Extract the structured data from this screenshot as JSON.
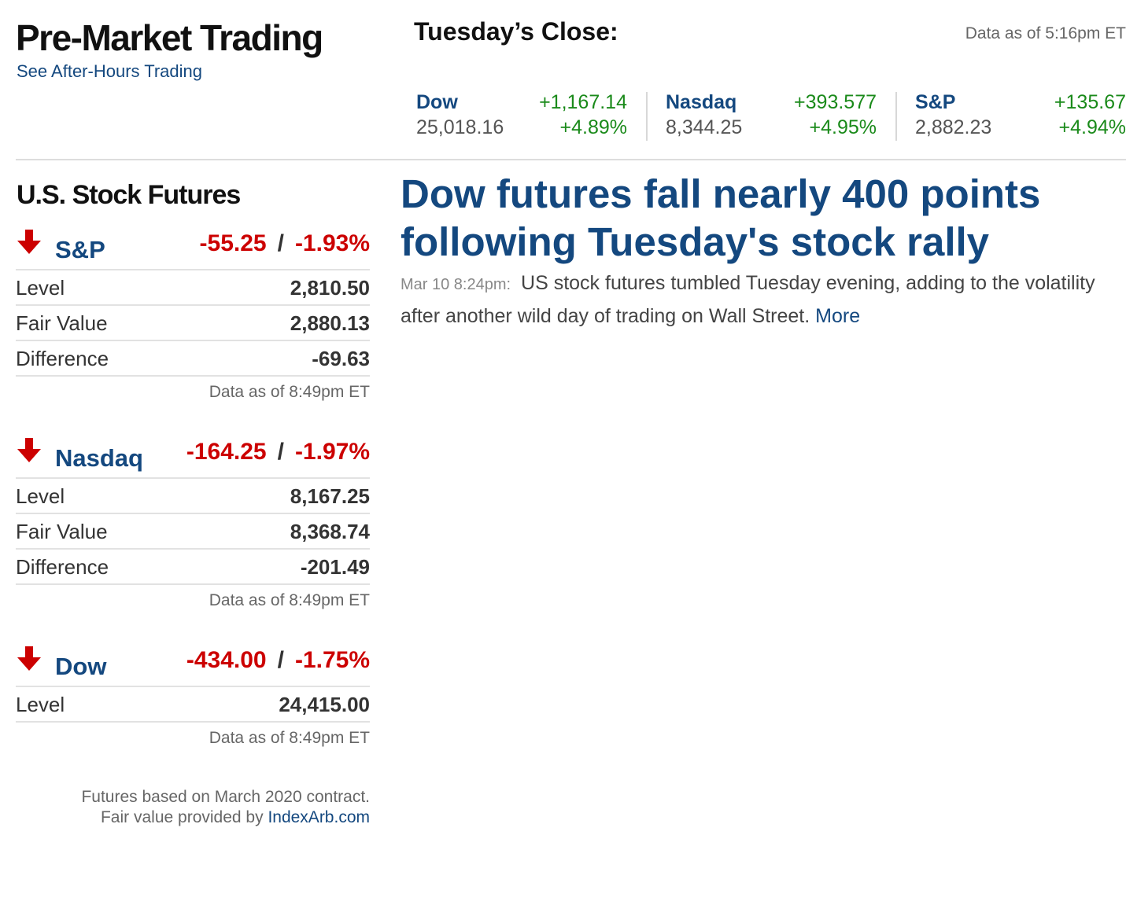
{
  "header": {
    "title": "Pre-Market Trading",
    "after_hours_link": "See After-Hours Trading"
  },
  "close": {
    "title": "Tuesday’s Close:",
    "as_of": "Data as of 5:16pm ET",
    "indices": [
      {
        "name": "Dow",
        "change": "+1,167.14",
        "level": "25,018.16",
        "pct": "+4.89%"
      },
      {
        "name": "Nasdaq",
        "change": "+393.577",
        "level": "8,344.25",
        "pct": "+4.95%"
      },
      {
        "name": "S&P",
        "change": "+135.67",
        "level": "2,882.23",
        "pct": "+4.94%"
      }
    ]
  },
  "futures": {
    "title": "U.S. Stock Futures",
    "blocks": [
      {
        "name": "S&P",
        "change": "-55.25",
        "sep": "/",
        "pct": "-1.93%",
        "rows": [
          {
            "label": "Level",
            "value": "2,810.50"
          },
          {
            "label": "Fair Value",
            "value": "2,880.13"
          },
          {
            "label": "Difference",
            "value": "-69.63"
          }
        ],
        "as_of": "Data as of 8:49pm ET"
      },
      {
        "name": "Nasdaq",
        "change": "-164.25",
        "sep": "/",
        "pct": "-1.97%",
        "rows": [
          {
            "label": "Level",
            "value": "8,167.25"
          },
          {
            "label": "Fair Value",
            "value": "8,368.74"
          },
          {
            "label": "Difference",
            "value": "-201.49"
          }
        ],
        "as_of": "Data as of 8:49pm ET"
      },
      {
        "name": "Dow",
        "change": "-434.00",
        "sep": "/",
        "pct": "-1.75%",
        "rows": [
          {
            "label": "Level",
            "value": "24,415.00"
          }
        ],
        "as_of": "Data as of 8:49pm ET"
      }
    ],
    "note_line1": "Futures based on March 2020 contract.",
    "note_line2_prefix": "Fair value provided by",
    "note_link": "IndexArb.com"
  },
  "article": {
    "headline": "Dow futures fall nearly 400 points following Tuesday's stock rally",
    "time": "Mar 10 8:24pm:",
    "summary": "US stock futures tumbled Tuesday evening, adding to the volatility after another wild day of trading on Wall Street.",
    "more": "More"
  },
  "colors": {
    "link_blue": "#14487f",
    "positive_green": "#1a8a1a",
    "negative_red": "#cc0000"
  },
  "icons": {
    "futures_direction": "down-arrow-icon"
  }
}
